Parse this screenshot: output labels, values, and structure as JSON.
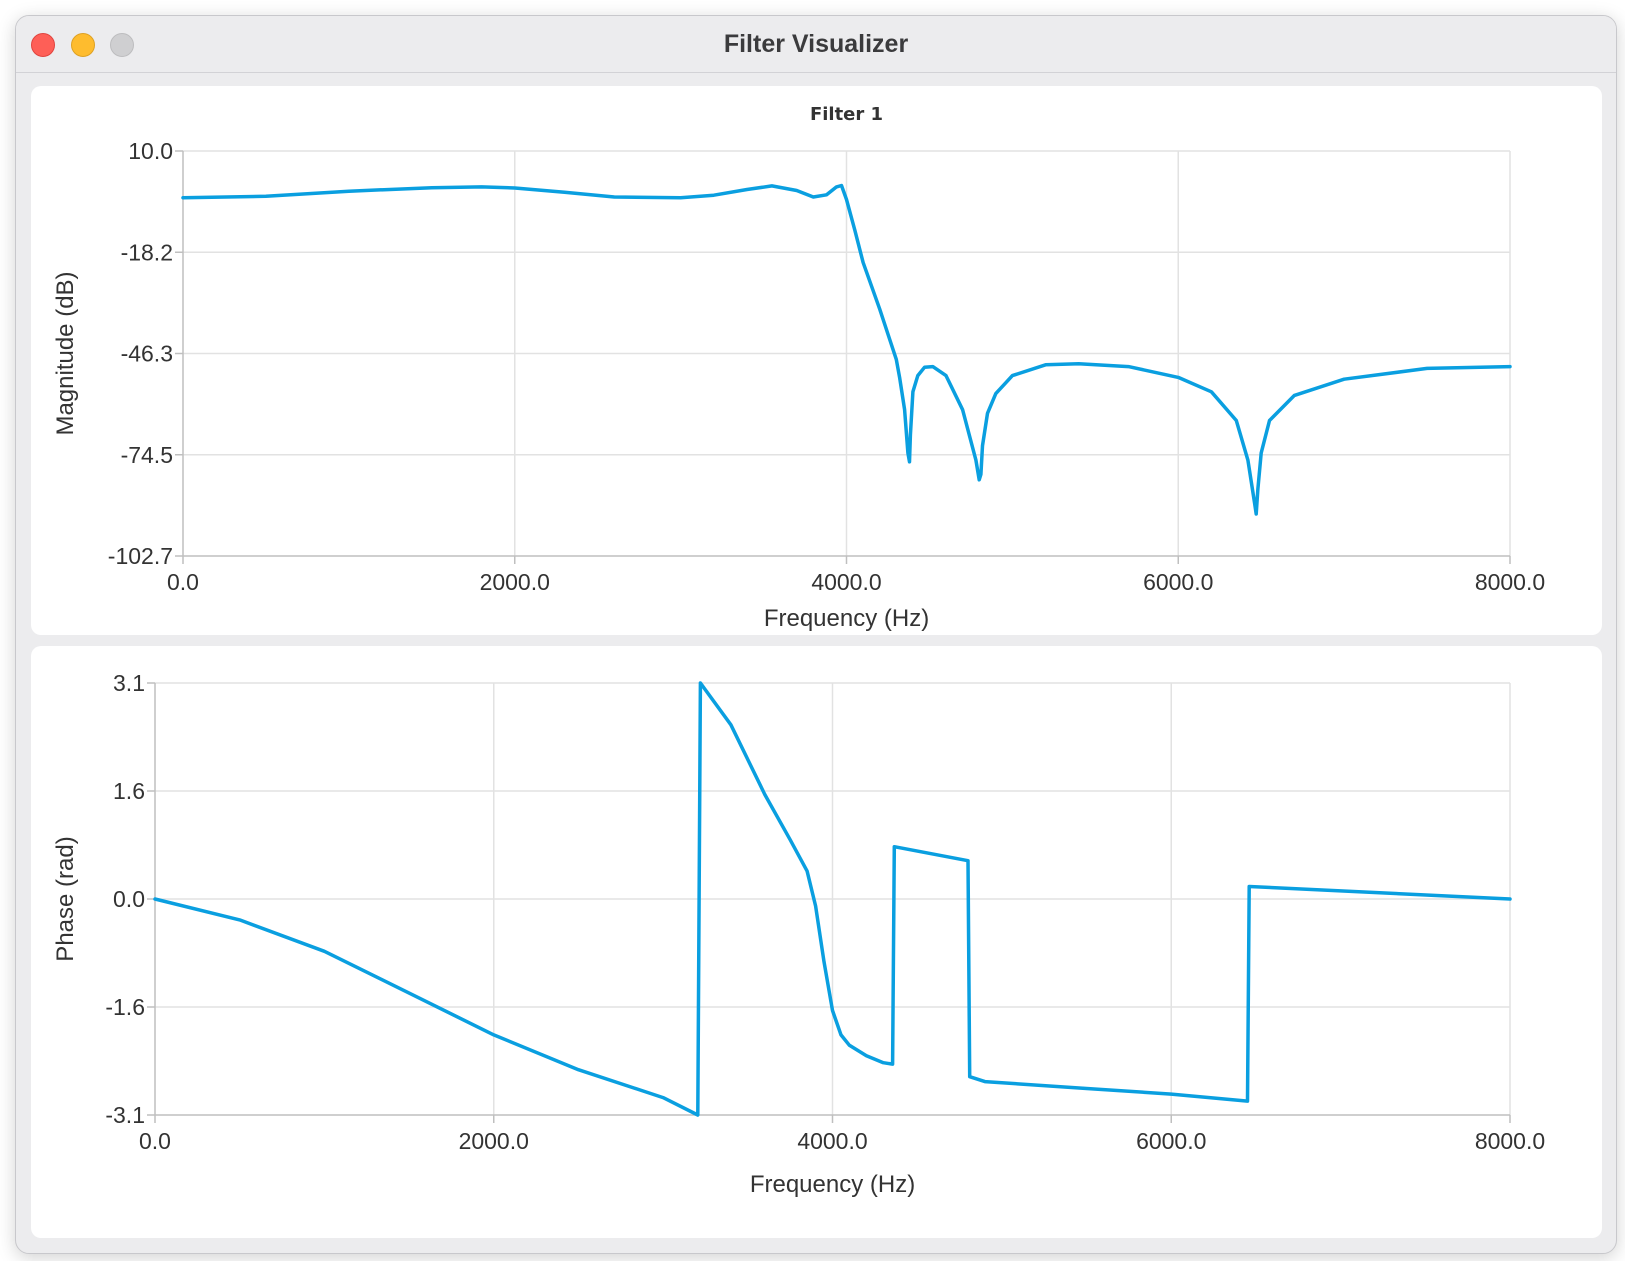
{
  "window": {
    "title": "Filter Visualizer"
  },
  "colors": {
    "series": "#0a9fe0",
    "close": "#fe5f57",
    "minimize": "#febc2e",
    "zoom": "#cfcfd1"
  },
  "chart_data": [
    {
      "type": "line",
      "title": "Filter 1",
      "xlabel": "Frequency (Hz)",
      "ylabel": "Magnitude (dB)",
      "xlim": [
        0,
        8000
      ],
      "ylim": [
        -102.7,
        10.0
      ],
      "xticks": [
        "0.0",
        "2000.0",
        "4000.0",
        "6000.0",
        "8000.0"
      ],
      "yticks": [
        "10.0",
        "-18.2",
        "-46.3",
        "-74.5",
        "-102.7"
      ],
      "grid": true,
      "series": [
        {
          "x": [
            0,
            500,
            1000,
            1500,
            1800,
            2000,
            2300,
            2600,
            3000,
            3200,
            3400,
            3550,
            3700,
            3800,
            3880,
            3940,
            3970,
            4000,
            4050,
            4100,
            4200,
            4300,
            4320,
            4350,
            4370,
            4380,
            4385,
            4400,
            4430,
            4470,
            4520,
            4600,
            4700,
            4780,
            4800,
            4810,
            4820,
            4850,
            4900,
            5000,
            5200,
            5400,
            5700,
            6000,
            6200,
            6350,
            6420,
            6460,
            6470,
            6480,
            6500,
            6550,
            6700,
            7000,
            7500,
            8000
          ],
          "y": [
            -3.0,
            -2.6,
            -1.2,
            -0.2,
            0.0,
            -0.3,
            -1.5,
            -2.8,
            -3.0,
            -2.3,
            -0.7,
            0.3,
            -1.0,
            -2.8,
            -2.2,
            0.0,
            0.4,
            -3.5,
            -12.0,
            -21.0,
            -34.0,
            -48.0,
            -53.0,
            -62.0,
            -74.0,
            -76.5,
            -69.0,
            -57.0,
            -52.5,
            -50.2,
            -50.0,
            -52.5,
            -62.0,
            -76.0,
            -81.5,
            -80.0,
            -72.0,
            -63.0,
            -57.5,
            -52.5,
            -49.5,
            -49.2,
            -50.0,
            -53.0,
            -57.0,
            -65.0,
            -76.0,
            -88.0,
            -91.0,
            -84.0,
            -74.0,
            -65.0,
            -58.0,
            -53.5,
            -50.5,
            -50.0
          ]
        }
      ]
    },
    {
      "type": "line",
      "title": "",
      "xlabel": "Frequency (Hz)",
      "ylabel": "Phase (rad)",
      "xlim": [
        0,
        8000
      ],
      "ylim": [
        -3.1,
        3.1
      ],
      "xticks": [
        "0.0",
        "2000.0",
        "4000.0",
        "6000.0",
        "8000.0"
      ],
      "yticks": [
        "3.1",
        "1.6",
        "0.0",
        "-1.6",
        "-3.1"
      ],
      "grid": true,
      "series": [
        {
          "x": [
            0,
            500,
            1000,
            1500,
            2000,
            2500,
            3000,
            3205,
            3220,
            3400,
            3600,
            3750,
            3850,
            3900,
            3950,
            4000,
            4050,
            4100,
            4200,
            4300,
            4355,
            4365,
            4800,
            4810,
            4900,
            5500,
            6000,
            6450,
            6460,
            8000
          ],
          "y": [
            0.0,
            -0.3,
            -0.75,
            -1.35,
            -1.95,
            -2.45,
            -2.85,
            -3.1,
            3.1,
            2.5,
            1.5,
            0.85,
            0.4,
            -0.1,
            -0.9,
            -1.6,
            -1.95,
            -2.1,
            -2.25,
            -2.35,
            -2.37,
            0.75,
            0.55,
            -2.55,
            -2.62,
            -2.72,
            -2.8,
            -2.9,
            0.18,
            0.0
          ]
        }
      ]
    }
  ]
}
